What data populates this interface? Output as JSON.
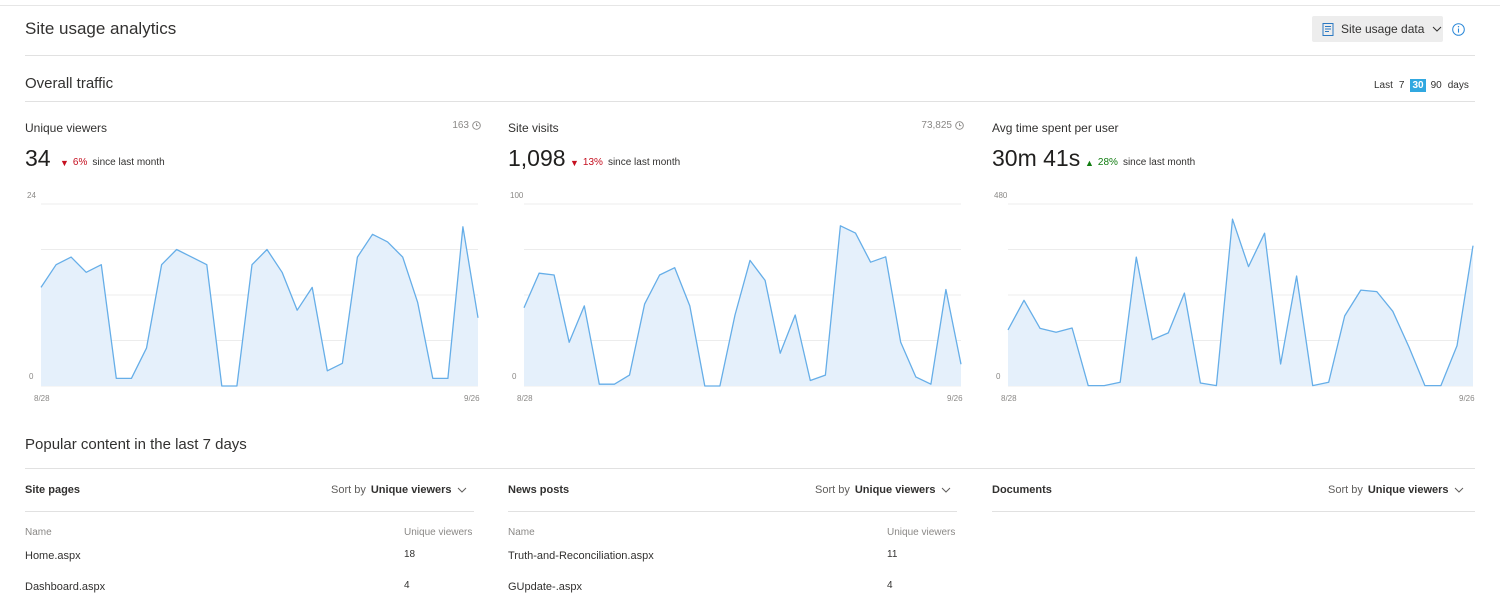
{
  "header": {
    "title": "Site usage analytics",
    "data_button": "Site usage data"
  },
  "traffic": {
    "title": "Overall traffic",
    "range": {
      "prefix": "Last",
      "options": [
        "7",
        "30",
        "90"
      ],
      "selected": "30",
      "suffix": "days"
    }
  },
  "cards": [
    {
      "title": "Unique viewers",
      "total": "163",
      "value": "34",
      "delta": "6%",
      "delta_dir": "down",
      "delta_suffix": "since last month",
      "ymax_label": "24",
      "ymin_label": "0",
      "x_start": "8/28",
      "x_end": "9/26"
    },
    {
      "title": "Site visits",
      "total": "73,825",
      "value": "1,098",
      "delta": "13%",
      "delta_dir": "down",
      "delta_suffix": "since last month",
      "ymax_label": "100",
      "ymin_label": "0",
      "x_start": "8/28",
      "x_end": "9/26"
    },
    {
      "title": "Avg time spent per user",
      "total": "",
      "value": "30m 41s",
      "delta": "28%",
      "delta_dir": "up",
      "delta_suffix": "since last month",
      "ymax_label": "480",
      "ymin_label": "0",
      "x_start": "8/28",
      "x_end": "9/26"
    }
  ],
  "chart_data": [
    {
      "type": "area",
      "title": "Unique viewers",
      "x": [
        "8/28",
        "8/29",
        "8/30",
        "8/31",
        "9/1",
        "9/2",
        "9/3",
        "9/4",
        "9/5",
        "9/6",
        "9/7",
        "9/8",
        "9/9",
        "9/10",
        "9/11",
        "9/12",
        "9/13",
        "9/14",
        "9/15",
        "9/16",
        "9/17",
        "9/18",
        "9/19",
        "9/20",
        "9/21",
        "9/22",
        "9/23",
        "9/24",
        "9/25",
        "9/26"
      ],
      "values": [
        13,
        16,
        17,
        15,
        16,
        1,
        1,
        5,
        16,
        18,
        17,
        16,
        0,
        0,
        16,
        18,
        15,
        10,
        13,
        2,
        3,
        17,
        20,
        19,
        17,
        11,
        1,
        1,
        21,
        9
      ],
      "ylim": [
        0,
        24
      ],
      "color": "#66aee8"
    },
    {
      "type": "area",
      "title": "Site visits",
      "x": [
        "8/28",
        "8/29",
        "8/30",
        "8/31",
        "9/1",
        "9/2",
        "9/3",
        "9/4",
        "9/5",
        "9/6",
        "9/7",
        "9/8",
        "9/9",
        "9/10",
        "9/11",
        "9/12",
        "9/13",
        "9/14",
        "9/15",
        "9/16",
        "9/17",
        "9/18",
        "9/19",
        "9/20",
        "9/21",
        "9/22",
        "9/23",
        "9/24",
        "9/25",
        "9/26"
      ],
      "values": [
        43,
        62,
        61,
        24,
        44,
        1,
        1,
        6,
        45,
        61,
        65,
        44,
        0,
        0,
        39,
        69,
        58,
        18,
        39,
        3,
        6,
        88,
        84,
        68,
        71,
        24,
        5,
        1,
        53,
        12
      ],
      "ylim": [
        0,
        100
      ],
      "color": "#66aee8"
    },
    {
      "type": "area",
      "title": "Avg time spent per user",
      "x": [
        "8/28",
        "8/29",
        "8/30",
        "8/31",
        "9/1",
        "9/2",
        "9/3",
        "9/4",
        "9/5",
        "9/6",
        "9/7",
        "9/8",
        "9/9",
        "9/10",
        "9/11",
        "9/12",
        "9/13",
        "9/14",
        "9/15",
        "9/16",
        "9/17",
        "9/18",
        "9/19",
        "9/20",
        "9/21",
        "9/22",
        "9/23",
        "9/24",
        "9/25",
        "9/26"
      ],
      "values": [
        148,
        226,
        152,
        142,
        153,
        1,
        1,
        10,
        340,
        122,
        140,
        245,
        8,
        1,
        440,
        315,
        403,
        58,
        290,
        1,
        10,
        185,
        253,
        249,
        197,
        103,
        1,
        1,
        106,
        370
      ],
      "ylim": [
        0,
        480
      ],
      "color": "#66aee8"
    }
  ],
  "popular": {
    "title": "Popular content in the last 7 days",
    "lists": [
      {
        "title": "Site pages",
        "sort_prefix": "Sort by",
        "sort_value": "Unique viewers",
        "col_name": "Name",
        "col_value": "Unique viewers",
        "rows": [
          {
            "name": "Home.aspx",
            "value": "18"
          },
          {
            "name": "Dashboard.aspx",
            "value": "4"
          }
        ]
      },
      {
        "title": "News posts",
        "sort_prefix": "Sort by",
        "sort_value": "Unique viewers",
        "col_name": "Name",
        "col_value": "Unique viewers",
        "rows": [
          {
            "name": "Truth-and-Reconciliation.aspx",
            "value": "11"
          },
          {
            "name": "GUpdate-.aspx",
            "value": "4"
          }
        ]
      },
      {
        "title": "Documents",
        "sort_prefix": "Sort by",
        "sort_value": "Unique viewers"
      }
    ]
  }
}
